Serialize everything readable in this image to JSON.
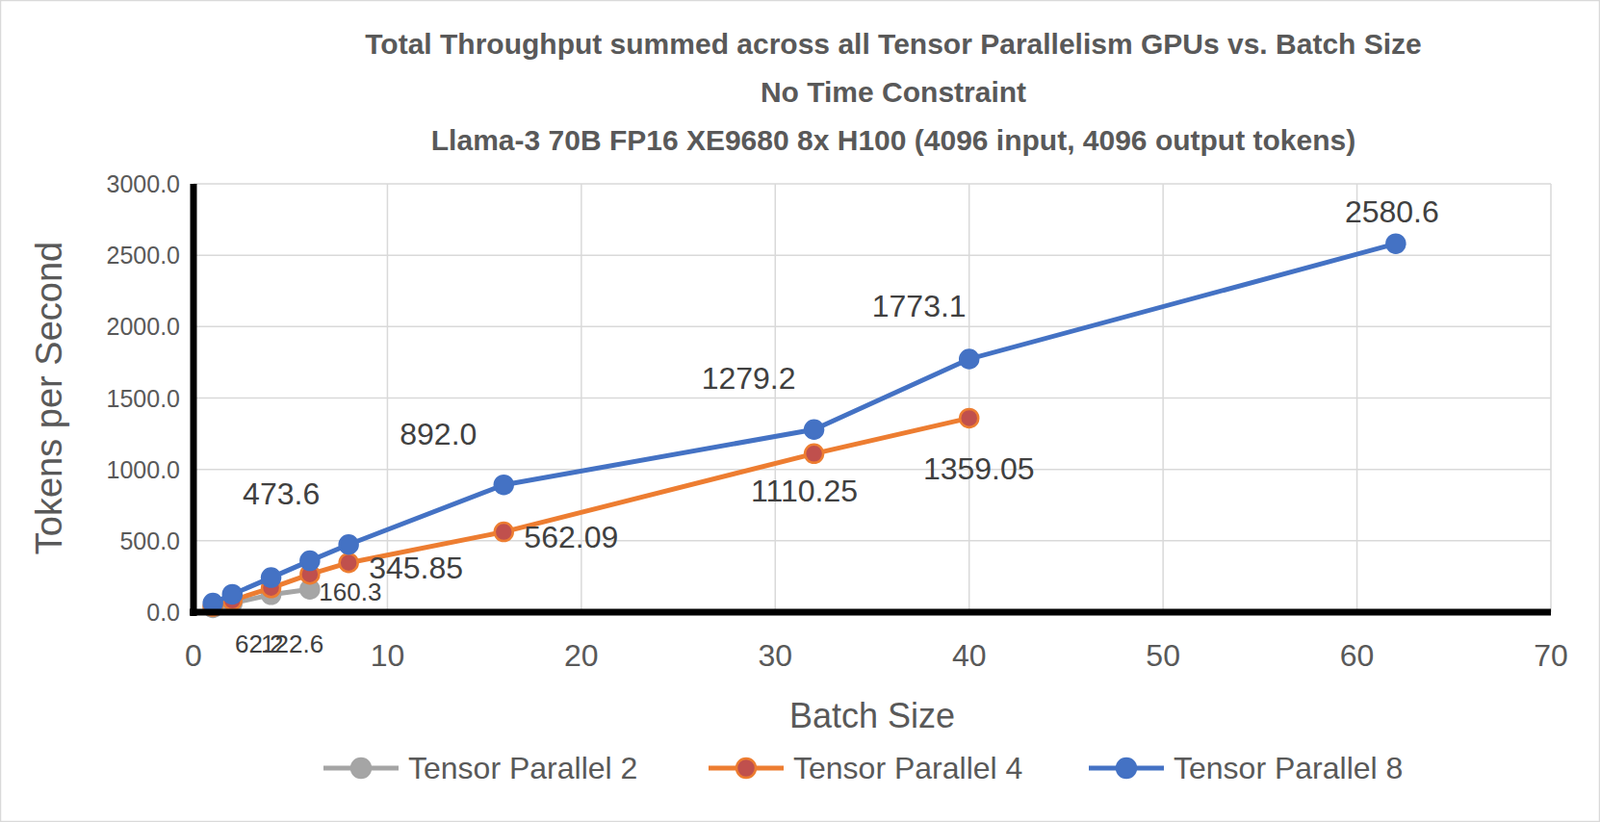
{
  "chart_data": {
    "type": "line",
    "title": "Total Throughput summed across all Tensor Parallelism GPUs vs. Batch Size",
    "subtitle": [
      "No Time Constraint",
      "Llama-3 70B FP16  XE9680 8x H100 (4096 input, 4096 output tokens)"
    ],
    "x_label": "Batch Size",
    "y_label": "Tokens per Second",
    "xlim": [
      0,
      70
    ],
    "xticks": [
      0,
      10,
      20,
      30,
      40,
      50,
      60,
      70
    ],
    "ylim": [
      0,
      3000
    ],
    "yticks": [
      {
        "value": 0,
        "label": "0.0"
      },
      {
        "value": 500,
        "label": "500.0"
      },
      {
        "value": 1000,
        "label": "1000.0"
      },
      {
        "value": 1500,
        "label": "1500.0"
      },
      {
        "value": 2000,
        "label": "2000.0"
      },
      {
        "value": 2500,
        "label": "2500.0"
      },
      {
        "value": 3000,
        "label": "3000.0"
      }
    ],
    "grid": true,
    "legend": "bottom",
    "data_labels": true,
    "series": [
      {
        "name": "Tensor Parallel 2",
        "color": "#a5a5a5",
        "marker": "circle",
        "line_style": "solid",
        "x": [
          1,
          2,
          4,
          6
        ],
        "values": [
          31,
          62.2,
          122.6,
          160.3
        ],
        "value_labels": [
          null,
          "62.2",
          "122.6",
          "160.3"
        ]
      },
      {
        "name": "Tensor Parallel 4",
        "color": "#ed7d31",
        "marker": "circle",
        "line_style": "solid",
        "x": [
          1,
          2,
          4,
          6,
          8,
          16,
          32,
          40
        ],
        "values": [
          40,
          82,
          170,
          265,
          345.85,
          562.09,
          1110.25,
          1359.05
        ],
        "value_labels": [
          null,
          null,
          null,
          null,
          "345.85",
          "562.09",
          "1110.25",
          "1359.05"
        ]
      },
      {
        "name": "Tensor Parallel 8",
        "color": "#4472c4",
        "marker": "circle",
        "line_style": "solid",
        "x": [
          1,
          2,
          4,
          6,
          8,
          16,
          32,
          40,
          62
        ],
        "values": [
          64,
          125,
          242,
          360,
          473.6,
          892.0,
          1279.2,
          1773.1,
          2580.6
        ],
        "value_labels": [
          null,
          null,
          null,
          null,
          "473.6",
          "892.0",
          "1279.2",
          "1773.1",
          "2580.6"
        ]
      }
    ]
  }
}
